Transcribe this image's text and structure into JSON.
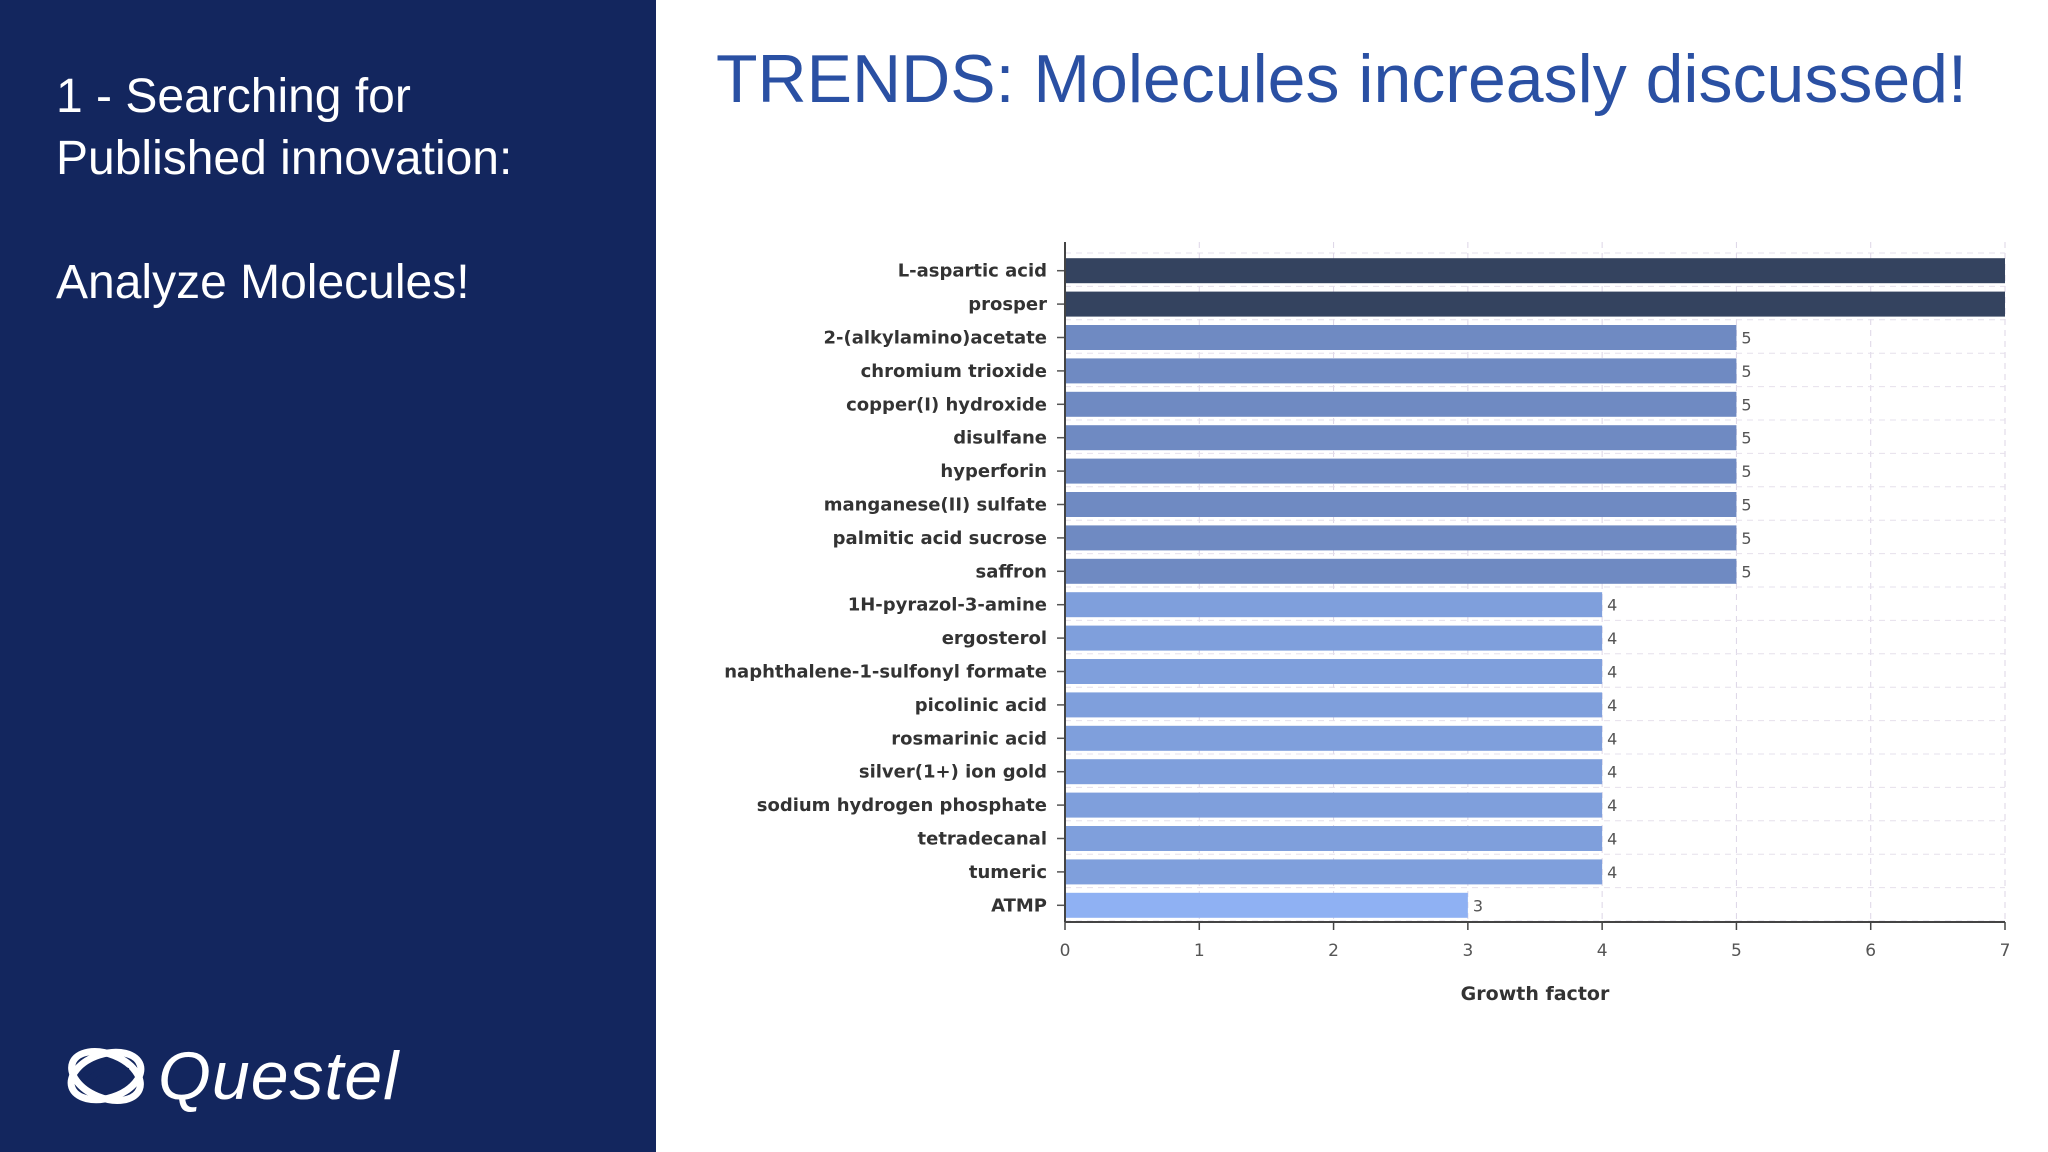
{
  "sidebar": {
    "line1": "1 - Searching for",
    "line2": "Published innovation:",
    "line3": "Analyze Molecules!",
    "logo_text": "Questel"
  },
  "title": "TRENDS: Molecules increasly discussed!",
  "chart_data": {
    "type": "bar",
    "orientation": "horizontal",
    "title": "",
    "xlabel": "Growth factor",
    "ylabel": "",
    "xlim": [
      0,
      7
    ],
    "xticks": [
      0,
      1,
      2,
      3,
      4,
      5,
      6,
      7
    ],
    "grid": true,
    "categories": [
      "L-aspartic acid",
      "prosper",
      "2-(alkylamino)acetate",
      "chromium trioxide",
      "copper(I) hydroxide",
      "disulfane",
      "hyperforin",
      "manganese(II) sulfate",
      "palmitic acid sucrose",
      "saffron",
      "1H-pyrazol-3-amine",
      "ergosterol",
      "naphthalene-1-sulfonyl formate",
      "picolinic acid",
      "rosmarinic acid",
      "silver(1+) ion gold",
      "sodium hydrogen phosphate",
      "tetradecanal",
      "tumeric",
      "ATMP"
    ],
    "values": [
      7,
      7,
      5,
      5,
      5,
      5,
      5,
      5,
      5,
      5,
      4,
      4,
      4,
      4,
      4,
      4,
      4,
      4,
      4,
      3
    ],
    "value_labels": [
      "",
      "",
      "5",
      "5",
      "5",
      "5",
      "5",
      "5",
      "5",
      "5",
      "4",
      "4",
      "4",
      "4",
      "4",
      "4",
      "4",
      "4",
      "4",
      "3"
    ],
    "colors": {
      "7": "#34435f",
      "5": "#6f8ac2",
      "4": "#7f9fdc",
      "3": "#8fb1f3"
    }
  }
}
